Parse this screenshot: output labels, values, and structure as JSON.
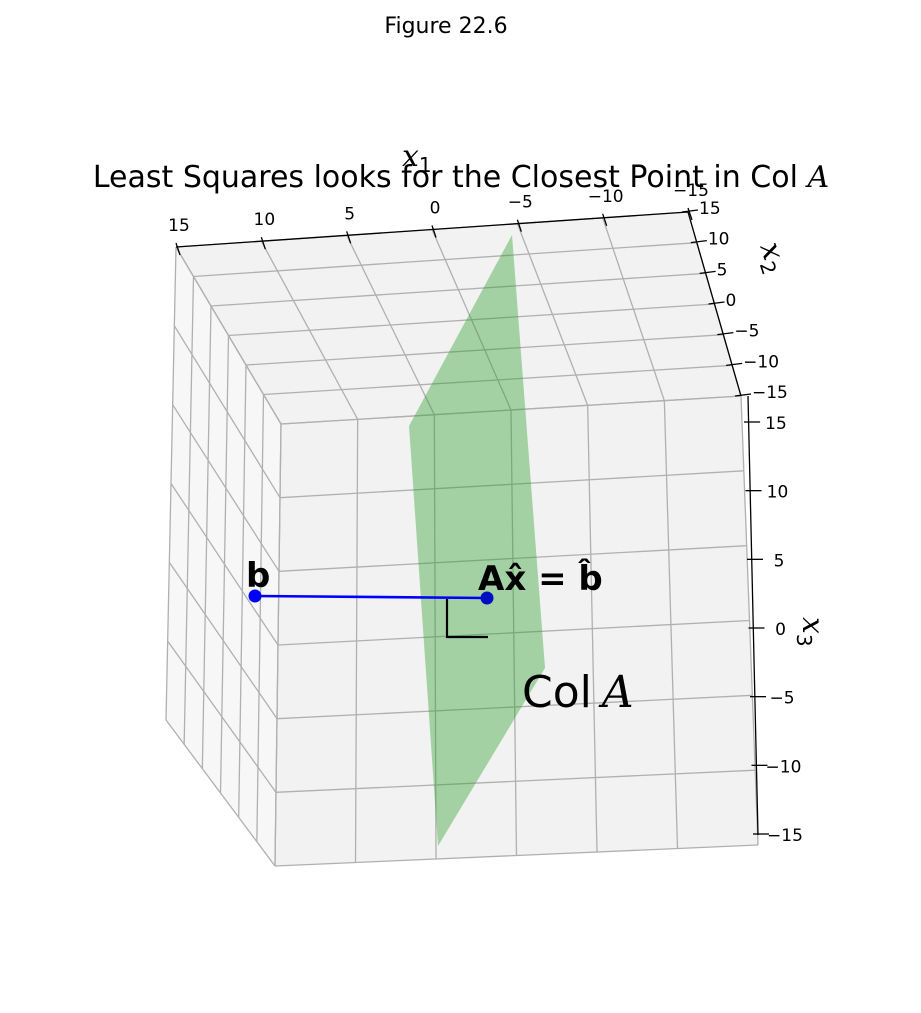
{
  "figure": {
    "suptitle": "Figure 22.6"
  },
  "colors": {
    "plane": "#2ca02c",
    "line": "#0000ff",
    "point": "#0000ff",
    "point_hat": "#0010c0",
    "right_angle": "#000000"
  },
  "chart_data": {
    "type": "scatter",
    "title": "Least Squares looks for the Closest Point in Col A",
    "title_parts": {
      "text": "Least Squares looks for the Closest Point in Col ",
      "italic": "A"
    },
    "axes": {
      "x1": {
        "label": "x",
        "sub": "1",
        "lim": [
          -15,
          15
        ],
        "ticks": [
          15,
          10,
          5,
          0,
          -5,
          -10,
          -15
        ]
      },
      "x2": {
        "label": "x",
        "sub": "2",
        "lim": [
          -15,
          15
        ],
        "ticks": [
          15,
          10,
          5,
          0,
          -5,
          -10,
          -15
        ]
      },
      "x3": {
        "label": "x",
        "sub": "3",
        "lim": [
          -15,
          15
        ],
        "ticks": [
          15,
          10,
          5,
          0,
          -5,
          -10,
          -15
        ]
      }
    },
    "grid": true,
    "points": [
      {
        "name": "b",
        "label": "b",
        "x3": 2.2
      },
      {
        "name": "b_hat",
        "label": "Ax̂ = b̂",
        "x3": 2.0
      }
    ],
    "segments": [
      {
        "from": "b",
        "to": "b_hat"
      }
    ],
    "plane": {
      "label": "Col",
      "label_italic": "A"
    },
    "annotations": {
      "right_angle": true
    }
  }
}
